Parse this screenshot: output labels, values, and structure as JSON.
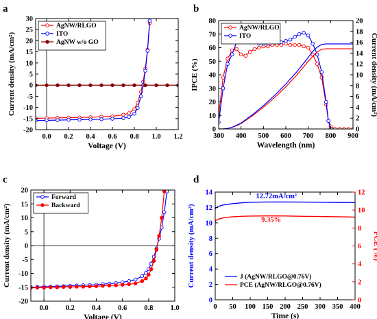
{
  "chart_data": [
    {
      "panel": "a",
      "type": "line",
      "xlabel": "Voltage (V)",
      "ylabel": "Current density (mA/cm²)",
      "xlim": [
        -0.1,
        1.2
      ],
      "ylim": [
        -20,
        30
      ],
      "xticks": [
        0.0,
        0.2,
        0.4,
        0.6,
        0.8,
        1.0,
        1.2
      ],
      "xtick_labels": [
        "0.0",
        "0.2",
        "0.4",
        "0.6",
        "0.8",
        "1.0",
        "1.2"
      ],
      "yticks": [
        -20,
        -15,
        -10,
        -5,
        0,
        5,
        10,
        15,
        20,
        25,
        30
      ],
      "ytick_labels": [
        "-20",
        "-15",
        "-10",
        "-5",
        "0",
        "5",
        "10",
        "15",
        "20",
        "25",
        "30"
      ],
      "legend_position": "top-left",
      "series": [
        {
          "name": "AgNW/RLGO",
          "color": "#ff0000",
          "marker": "circle-open",
          "x": [
            -0.1,
            0.0,
            0.1,
            0.2,
            0.3,
            0.4,
            0.5,
            0.6,
            0.7,
            0.75,
            0.8,
            0.83,
            0.86,
            0.88,
            0.9,
            0.92,
            0.94
          ],
          "y": [
            -14.9,
            -14.8,
            -14.7,
            -14.6,
            -14.5,
            -14.4,
            -14.2,
            -14.0,
            -13.3,
            -12.6,
            -10.8,
            -7.8,
            -3.0,
            1.5,
            7.5,
            16.0,
            28.0
          ]
        },
        {
          "name": "ITO",
          "color": "#0000ff",
          "marker": "circle-open",
          "x": [
            -0.1,
            0.0,
            0.1,
            0.2,
            0.3,
            0.4,
            0.5,
            0.6,
            0.7,
            0.75,
            0.8,
            0.83,
            0.86,
            0.88,
            0.9,
            0.92,
            0.94
          ],
          "y": [
            -15.9,
            -15.8,
            -15.7,
            -15.6,
            -15.5,
            -15.4,
            -15.3,
            -15.1,
            -14.8,
            -14.2,
            -12.8,
            -10.2,
            -5.0,
            0.0,
            6.5,
            15.5,
            29.0
          ]
        },
        {
          "name": "AgNW w/o GO",
          "color": "#8b0000",
          "marker": "circle-filled",
          "x": [
            -0.1,
            0.0,
            0.1,
            0.2,
            0.3,
            0.4,
            0.5,
            0.6,
            0.7,
            0.8,
            0.9,
            1.0,
            1.1,
            1.2
          ],
          "y": [
            0,
            0,
            0,
            0,
            0,
            0,
            0,
            0,
            0,
            0,
            0,
            0,
            0,
            0
          ]
        }
      ]
    },
    {
      "panel": "b",
      "type": "line",
      "xlabel": "Wavelength (nm)",
      "ylabel": "IPCE (%)",
      "ylabel_right": "Current density (mA/cm²)",
      "xlim": [
        300,
        900
      ],
      "ylim": [
        0,
        80
      ],
      "ylim_right": [
        0,
        20
      ],
      "xticks": [
        300,
        400,
        500,
        600,
        700,
        800,
        900
      ],
      "xtick_labels": [
        "300",
        "400",
        "500",
        "600",
        "700",
        "800",
        "900"
      ],
      "yticks": [
        0,
        10,
        20,
        30,
        40,
        50,
        60,
        70,
        80
      ],
      "ytick_labels": [
        "0",
        "10",
        "20",
        "30",
        "40",
        "50",
        "60",
        "70",
        "80"
      ],
      "yticks_right": [
        0,
        2,
        4,
        6,
        8,
        10,
        12,
        14,
        16,
        18,
        20
      ],
      "ytick_labels_right": [
        "0",
        "2",
        "4",
        "6",
        "8",
        "10",
        "12",
        "14",
        "16",
        "18",
        "20"
      ],
      "legend_position": "top-left",
      "series": [
        {
          "name": "AgNW/RLGO",
          "color": "#ff0000",
          "marker": "circle-open",
          "axis": "left",
          "x": [
            300,
            320,
            340,
            360,
            380,
            400,
            420,
            440,
            460,
            480,
            500,
            520,
            540,
            560,
            580,
            600,
            620,
            640,
            660,
            680,
            700,
            720,
            740,
            760,
            780,
            790,
            800,
            810,
            820,
            840,
            860,
            880,
            900
          ],
          "y": [
            10,
            38,
            52,
            58,
            59,
            55,
            54,
            57,
            59,
            60,
            61,
            61,
            62,
            62,
            62,
            63,
            62,
            62,
            62,
            61,
            60,
            55,
            48,
            38,
            18,
            6,
            2,
            0,
            0,
            0,
            0,
            0,
            0
          ]
        },
        {
          "name": "ITO",
          "color": "#0000ff",
          "marker": "circle-open",
          "axis": "left",
          "x": [
            300,
            320,
            340,
            360,
            380,
            400,
            420,
            440,
            460,
            480,
            500,
            520,
            540,
            560,
            580,
            600,
            620,
            640,
            660,
            680,
            700,
            720,
            740,
            760,
            780,
            790,
            800
          ],
          "y": [
            5,
            30,
            48,
            55,
            64,
            68,
            68,
            67,
            65,
            63,
            63,
            63,
            64,
            64,
            64,
            65,
            66,
            68,
            70,
            71,
            69,
            63,
            55,
            42,
            20,
            6,
            0
          ]
        },
        {
          "name": "",
          "color": "#ff0000",
          "marker": "none",
          "axis": "right",
          "x": [
            300,
            320,
            340,
            360,
            380,
            400,
            450,
            500,
            550,
            600,
            650,
            700,
            720,
            740,
            760,
            780,
            800,
            850,
            900
          ],
          "y": [
            0,
            0,
            0.1,
            0.3,
            0.6,
            1.0,
            2.4,
            4.0,
            5.8,
            7.8,
            10.0,
            12.5,
            13.4,
            14.2,
            14.7,
            14.8,
            14.8,
            14.8,
            14.8
          ]
        },
        {
          "name": "",
          "color": "#0000ff",
          "marker": "none",
          "axis": "right",
          "x": [
            300,
            320,
            340,
            360,
            380,
            400,
            450,
            500,
            550,
            600,
            650,
            700,
            720,
            740,
            760,
            780,
            800,
            850,
            900
          ],
          "y": [
            0,
            0,
            0.1,
            0.3,
            0.7,
            1.1,
            2.6,
            4.3,
            6.2,
            8.3,
            10.6,
            13.2,
            14.3,
            15.1,
            15.6,
            15.7,
            15.7,
            15.7,
            15.7
          ]
        }
      ]
    },
    {
      "panel": "c",
      "type": "line",
      "xlabel": "Voltage (V)",
      "ylabel": "Current density (mA/cm²)",
      "xlim": [
        -0.1,
        1.0
      ],
      "ylim": [
        -20,
        20
      ],
      "xticks": [
        0.0,
        0.2,
        0.4,
        0.6,
        0.8,
        1.0
      ],
      "xtick_labels": [
        "0.0",
        "0.2",
        "0.4",
        "0.6",
        "0.8",
        "1.0"
      ],
      "yticks": [
        -20,
        -15,
        -10,
        -5,
        0,
        5,
        10,
        15,
        20
      ],
      "ytick_labels": [
        "-20",
        "-15",
        "-10",
        "-5",
        "0",
        "5",
        "10",
        "15",
        "20"
      ],
      "legend_position": "top-left",
      "series": [
        {
          "name": "Forward",
          "color": "#0000ff",
          "marker": "circle-open",
          "x": [
            -0.1,
            -0.05,
            0.0,
            0.05,
            0.1,
            0.15,
            0.2,
            0.25,
            0.3,
            0.35,
            0.4,
            0.45,
            0.5,
            0.55,
            0.6,
            0.65,
            0.7,
            0.75,
            0.78,
            0.8,
            0.82,
            0.84,
            0.86,
            0.88,
            0.9,
            0.92,
            0.94
          ],
          "y": [
            -15.0,
            -14.9,
            -14.8,
            -14.8,
            -14.7,
            -14.6,
            -14.5,
            -14.4,
            -14.3,
            -14.2,
            -14.1,
            -13.9,
            -13.7,
            -13.5,
            -13.2,
            -12.8,
            -12.2,
            -11.0,
            -9.8,
            -8.5,
            -6.5,
            -4.0,
            -1.0,
            2.5,
            6.5,
            12.0,
            19.5
          ]
        },
        {
          "name": "Backward",
          "color": "#ff0000",
          "marker": "circle-filled",
          "x": [
            -0.1,
            -0.05,
            0.0,
            0.05,
            0.1,
            0.15,
            0.2,
            0.25,
            0.3,
            0.35,
            0.4,
            0.45,
            0.5,
            0.55,
            0.6,
            0.65,
            0.7,
            0.75,
            0.78,
            0.8,
            0.82,
            0.84,
            0.86,
            0.88,
            0.9,
            0.92
          ],
          "y": [
            -15.2,
            -15.1,
            -15.1,
            -15.0,
            -15.0,
            -14.9,
            -14.9,
            -14.8,
            -14.8,
            -14.7,
            -14.6,
            -14.5,
            -14.4,
            -14.3,
            -14.1,
            -13.9,
            -13.6,
            -12.8,
            -11.8,
            -10.5,
            -8.5,
            -5.5,
            -1.5,
            3.5,
            10.0,
            19.5
          ]
        }
      ]
    },
    {
      "panel": "d",
      "type": "line",
      "xlabel": "Time (s)",
      "ylabel": "Current density (mA/cm²)",
      "ylabel_right": "PCE (%)",
      "xlim": [
        0,
        400
      ],
      "ylim": [
        0,
        14
      ],
      "ylim_right": [
        0,
        12
      ],
      "xticks": [
        0,
        50,
        100,
        150,
        200,
        250,
        300,
        350,
        400
      ],
      "xtick_labels": [
        "0",
        "50",
        "100",
        "150",
        "200",
        "250",
        "300",
        "350",
        "400"
      ],
      "yticks": [
        0,
        2,
        4,
        6,
        8,
        10,
        12,
        14
      ],
      "ytick_labels": [
        "0",
        "2",
        "4",
        "6",
        "8",
        "10",
        "12",
        "14"
      ],
      "yticks_right": [
        0,
        2,
        4,
        6,
        8,
        10,
        12
      ],
      "ytick_labels_right": [
        "0",
        "2",
        "4",
        "6",
        "8",
        "10",
        "12"
      ],
      "legend_position": "bottom-left",
      "annotations": [
        {
          "text": "12.72mA/cm²",
          "color": "#0000ff",
          "x": 175,
          "y": 13.2
        },
        {
          "text": "9.35%",
          "color": "#ff0000",
          "x": 160,
          "y": 10.1
        }
      ],
      "series": [
        {
          "name": "J (AgNW/RLGO@0.76V)",
          "color": "#0000ff",
          "axis": "left",
          "x": [
            0,
            2,
            10,
            25,
            50,
            75,
            100,
            150,
            200,
            250,
            300,
            350,
            400
          ],
          "y": [
            11.8,
            11.95,
            12.15,
            12.35,
            12.5,
            12.6,
            12.68,
            12.72,
            12.72,
            12.7,
            12.68,
            12.66,
            12.64
          ]
        },
        {
          "name": "PCE (AgNW/RLGO@0.76V)",
          "color": "#ff0000",
          "axis": "right",
          "x": [
            0,
            2,
            10,
            25,
            50,
            75,
            100,
            150,
            200,
            250,
            300,
            350,
            400
          ],
          "y": [
            8.7,
            8.85,
            9.0,
            9.15,
            9.25,
            9.3,
            9.33,
            9.35,
            9.34,
            9.3,
            9.28,
            9.25,
            9.22
          ]
        }
      ]
    }
  ],
  "panel_letters": {
    "a": "a",
    "b": "b",
    "c": "c",
    "d": "d"
  }
}
